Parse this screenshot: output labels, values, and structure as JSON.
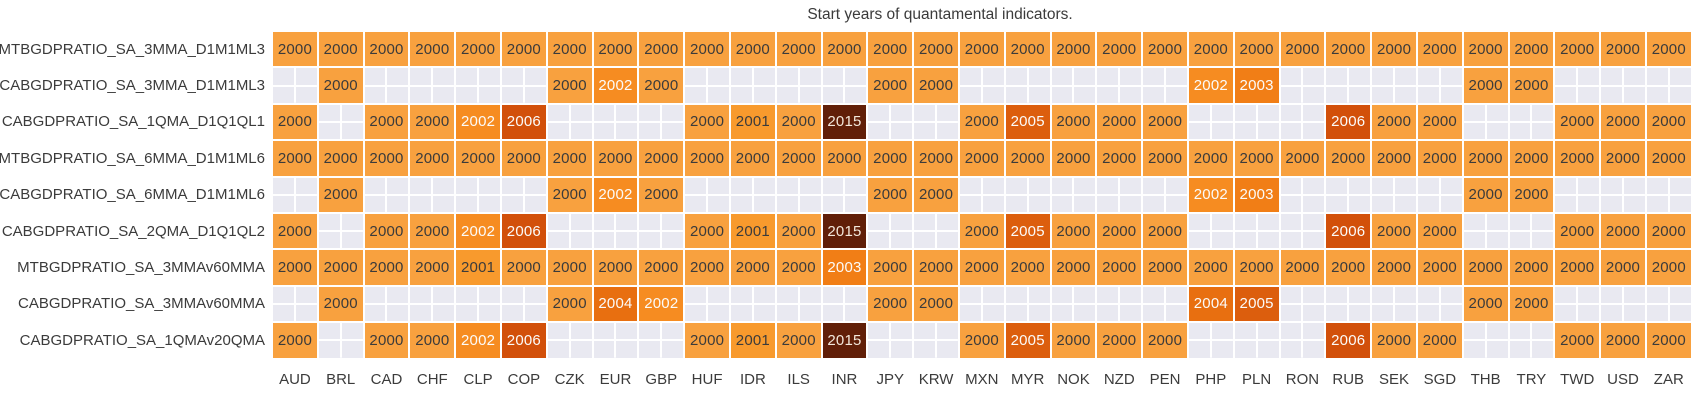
{
  "chart_data": {
    "type": "heatmap",
    "title": "Start years of quantamental indicators.",
    "rows": [
      "MTBGDPRATIO_SA_3MMA_D1M1ML3",
      "CABGDPRATIO_SA_3MMA_D1M1ML3",
      "CABGDPRATIO_SA_1QMA_D1Q1QL1",
      "MTBGDPRATIO_SA_6MMA_D1M1ML6",
      "CABGDPRATIO_SA_6MMA_D1M1ML6",
      "CABGDPRATIO_SA_2QMA_D1Q1QL2",
      "MTBGDPRATIO_SA_3MMAv60MMA",
      "CABGDPRATIO_SA_3MMAv60MMA",
      "CABGDPRATIO_SA_1QMAv20QMA"
    ],
    "columns": [
      "AUD",
      "BRL",
      "CAD",
      "CHF",
      "CLP",
      "COP",
      "CZK",
      "EUR",
      "GBP",
      "HUF",
      "IDR",
      "ILS",
      "INR",
      "JPY",
      "KRW",
      "MXN",
      "MYR",
      "NOK",
      "NZD",
      "PEN",
      "PHP",
      "PLN",
      "RON",
      "RUB",
      "SEK",
      "SGD",
      "THB",
      "TRY",
      "TWD",
      "USD",
      "ZAR"
    ],
    "values": [
      [
        2000,
        2000,
        2000,
        2000,
        2000,
        2000,
        2000,
        2000,
        2000,
        2000,
        2000,
        2000,
        2000,
        2000,
        2000,
        2000,
        2000,
        2000,
        2000,
        2000,
        2000,
        2000,
        2000,
        2000,
        2000,
        2000,
        2000,
        2000,
        2000,
        2000,
        2000
      ],
      [
        null,
        2000,
        null,
        null,
        null,
        null,
        2000,
        2002,
        2000,
        null,
        null,
        null,
        null,
        2000,
        2000,
        null,
        null,
        null,
        null,
        null,
        2002,
        2003,
        null,
        null,
        null,
        null,
        2000,
        2000,
        null,
        null,
        null
      ],
      [
        2000,
        null,
        2000,
        2000,
        2002,
        2006,
        null,
        null,
        null,
        2000,
        2001,
        2000,
        2015,
        null,
        null,
        2000,
        2005,
        2000,
        2000,
        2000,
        null,
        null,
        null,
        2006,
        2000,
        2000,
        null,
        null,
        2000,
        2000,
        2000
      ],
      [
        2000,
        2000,
        2000,
        2000,
        2000,
        2000,
        2000,
        2000,
        2000,
        2000,
        2000,
        2000,
        2000,
        2000,
        2000,
        2000,
        2000,
        2000,
        2000,
        2000,
        2000,
        2000,
        2000,
        2000,
        2000,
        2000,
        2000,
        2000,
        2000,
        2000,
        2000
      ],
      [
        null,
        2000,
        null,
        null,
        null,
        null,
        2000,
        2002,
        2000,
        null,
        null,
        null,
        null,
        2000,
        2000,
        null,
        null,
        null,
        null,
        null,
        2002,
        2003,
        null,
        null,
        null,
        null,
        2000,
        2000,
        null,
        null,
        null
      ],
      [
        2000,
        null,
        2000,
        2000,
        2002,
        2006,
        null,
        null,
        null,
        2000,
        2001,
        2000,
        2015,
        null,
        null,
        2000,
        2005,
        2000,
        2000,
        2000,
        null,
        null,
        null,
        2006,
        2000,
        2000,
        null,
        null,
        2000,
        2000,
        2000
      ],
      [
        2000,
        2000,
        2000,
        2000,
        2001,
        2000,
        2000,
        2000,
        2000,
        2000,
        2000,
        2000,
        2003,
        2000,
        2000,
        2000,
        2000,
        2000,
        2000,
        2000,
        2000,
        2000,
        2000,
        2000,
        2000,
        2000,
        2000,
        2000,
        2000,
        2000,
        2000
      ],
      [
        null,
        2000,
        null,
        null,
        null,
        null,
        2000,
        2004,
        2002,
        null,
        null,
        null,
        null,
        2000,
        2000,
        null,
        null,
        null,
        null,
        null,
        2004,
        2005,
        null,
        null,
        null,
        null,
        2000,
        2000,
        null,
        null,
        null
      ],
      [
        2000,
        null,
        2000,
        2000,
        2002,
        2006,
        null,
        null,
        null,
        2000,
        2001,
        2000,
        2015,
        null,
        null,
        2000,
        2005,
        2000,
        2000,
        2000,
        null,
        null,
        null,
        2006,
        2000,
        2000,
        null,
        null,
        2000,
        2000,
        2000
      ]
    ],
    "year_styles": {
      "2000": {
        "bg": "#F8A13F",
        "fg": "#3B3B3B"
      },
      "2001": {
        "bg": "#F89A2D",
        "fg": "#3B3B3B"
      },
      "2002": {
        "bg": "#F68C21",
        "fg": "#FCFBF9"
      },
      "2003": {
        "bg": "#F17E16",
        "fg": "#FCFBF9"
      },
      "2004": {
        "bg": "#E86F10",
        "fg": "#FCFBF9"
      },
      "2005": {
        "bg": "#DC5E0D",
        "fg": "#FCFBF9"
      },
      "2006": {
        "bg": "#D2500A",
        "fg": "#FCFBF9"
      },
      "2015": {
        "bg": "#611F08",
        "fg": "#F3E8DB"
      }
    },
    "empty_color": "#E9E9F1",
    "layout": {
      "legend": "none",
      "grid": "off",
      "value_range": [
        2000,
        2015
      ]
    }
  }
}
